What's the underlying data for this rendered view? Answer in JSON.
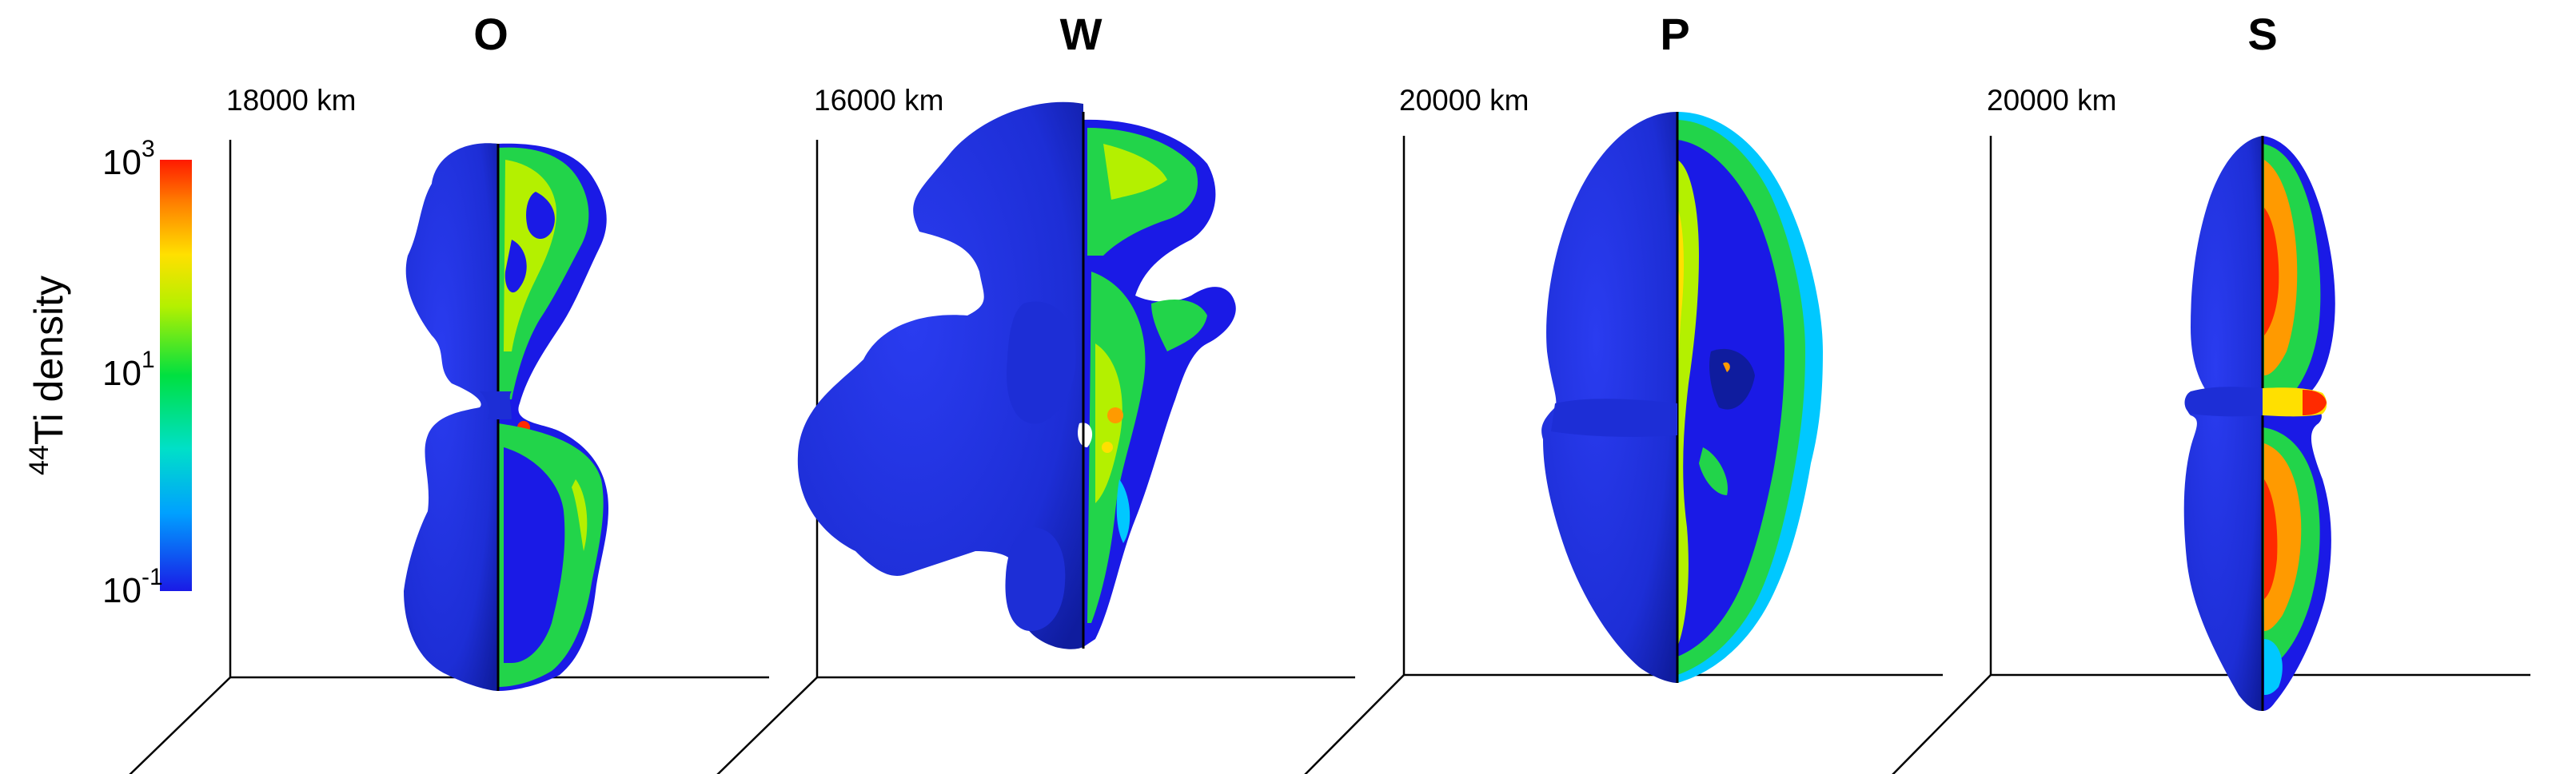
{
  "colorbar": {
    "label_sup": "44",
    "label_main": "Ti density",
    "ticks": [
      {
        "base": "10",
        "exp": "3"
      },
      {
        "base": "10",
        "exp": "1"
      },
      {
        "base": "10",
        "exp": "-1"
      }
    ],
    "scale": "log",
    "range": [
      0.1,
      1000
    ],
    "colormap": [
      "#1a1ae6",
      "#00c8ff",
      "#00e070",
      "#b4f000",
      "#ffe000",
      "#ff8000",
      "#ff1a00"
    ]
  },
  "panels": [
    {
      "id": "O",
      "title": "O",
      "scale_label": "18000 km"
    },
    {
      "id": "W",
      "title": "W",
      "scale_label": "16000 km"
    },
    {
      "id": "P",
      "title": "P",
      "scale_label": "20000 km"
    },
    {
      "id": "S",
      "title": "S",
      "scale_label": "20000 km"
    }
  ],
  "colors": {
    "shell_blue": "#1d2ed6",
    "shell_dark": "#0f1c9e",
    "interior_blue": "#1a1ae6",
    "cyan": "#00c8ff",
    "green": "#22d44a",
    "yellowgreen": "#b4f000",
    "orange": "#ff9a00",
    "red": "#ff2a00"
  }
}
